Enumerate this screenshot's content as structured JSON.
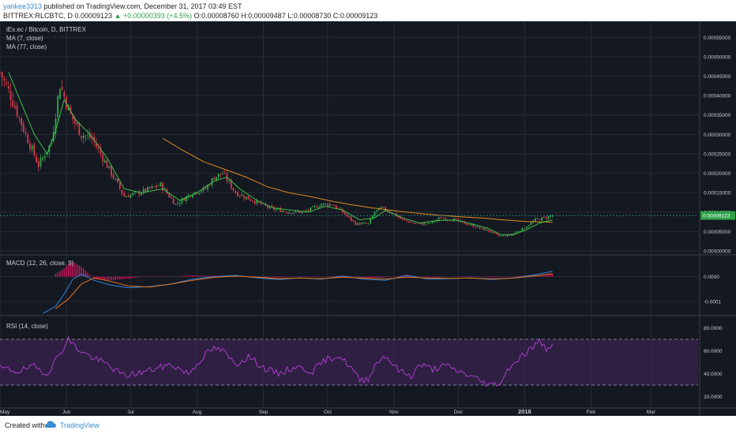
{
  "header": {
    "user": "yankee3313",
    "published": " published on TradingView.com, December 31, 2017 03:49 EST",
    "symbol_line": "BITTREX:RLCBTC, D  0.00009123",
    "change": "▲ +0.00000393 (+4.5%)",
    "ohlc": "O:0.00008760 H:0.00009487 L:0.00008730 C:0.00009123"
  },
  "price_pane": {
    "title": "iEx.ec / Bitcoin, D, BITTREX",
    "ma1": "MA (7, close)",
    "ma2": "MA (77, close)",
    "last_price": "0.00009123"
  },
  "macd_pane": {
    "title": "MACD (12, 26, close, 9)"
  },
  "rsi_pane": {
    "title": "RSI (14, close)"
  },
  "footer": {
    "created_with": "Created with",
    "brand": "TradingView"
  },
  "colors": {
    "background": "#141821",
    "up_candle": "#2ea24a",
    "down_candle": "#d0394a",
    "ma7": "#3fbf47",
    "ma77": "#e08a1e",
    "macd": "#2e86de",
    "signal": "#e8731a",
    "histogram": "#c2185b",
    "rsi": "#b53fd6",
    "rsi_band": "#3b2452",
    "grid": "#262b36",
    "axis_text": "#c8ccd4"
  },
  "chart_data": [
    {
      "type": "candlestick",
      "title": "iEx.ec / Bitcoin, D, BITTREX",
      "x_tick_labels": [
        "May",
        "Jun",
        "Jul",
        "Aug",
        "Sep",
        "Oct",
        "Nov",
        "Dec",
        "2018",
        "Feb",
        "Mar"
      ],
      "y_tick_labels": [
        "0.00000000",
        "0.00005000",
        "0.00010000",
        "0.00015000",
        "0.00020000",
        "0.00025000",
        "0.00030000",
        "0.00035000",
        "0.00040000",
        "0.00045000",
        "0.00050000",
        "0.00055000"
      ],
      "ylim": [
        0,
        0.000575
      ],
      "x_range_days": [
        0,
        326
      ],
      "anchors_close": [
        [
          0,
          0.00046
        ],
        [
          5,
          0.0004
        ],
        [
          12,
          0.0003
        ],
        [
          18,
          0.00022
        ],
        [
          24,
          0.00028
        ],
        [
          28,
          0.00043
        ],
        [
          33,
          0.00035
        ],
        [
          38,
          0.0003
        ],
        [
          43,
          0.00029
        ],
        [
          50,
          0.00022
        ],
        [
          58,
          0.00014
        ],
        [
          65,
          0.00015
        ],
        [
          75,
          0.00017
        ],
        [
          82,
          0.00012
        ],
        [
          90,
          0.00015
        ],
        [
          96,
          0.00016
        ],
        [
          100,
          0.00019
        ],
        [
          104,
          0.0002
        ],
        [
          110,
          0.00015
        ],
        [
          118,
          0.00013
        ],
        [
          126,
          0.00011
        ],
        [
          135,
          0.0001
        ],
        [
          142,
          0.0001
        ],
        [
          150,
          0.00012
        ],
        [
          155,
          0.00012
        ],
        [
          160,
          0.0001
        ],
        [
          166,
          7e-05
        ],
        [
          172,
          7e-05
        ],
        [
          175,
          0.0001
        ],
        [
          178,
          0.00011
        ],
        [
          183,
          9.8e-05
        ],
        [
          188,
          8e-05
        ],
        [
          194,
          7e-05
        ],
        [
          200,
          7e-05
        ],
        [
          206,
          8.5e-05
        ],
        [
          212,
          8e-05
        ],
        [
          218,
          7e-05
        ],
        [
          223,
          6e-05
        ],
        [
          228,
          5.2e-05
        ],
        [
          233,
          3.8e-05
        ],
        [
          238,
          4e-05
        ],
        [
          245,
          6e-05
        ],
        [
          250,
          8e-05
        ],
        [
          254,
          8.5e-05
        ],
        [
          258,
          9.123e-05
        ]
      ],
      "ma7": [
        [
          4,
          0.00046
        ],
        [
          10,
          0.00038
        ],
        [
          16,
          0.0003
        ],
        [
          22,
          0.00025
        ],
        [
          26,
          0.00031
        ],
        [
          30,
          0.00039
        ],
        [
          35,
          0.00034
        ],
        [
          42,
          0.0003
        ],
        [
          50,
          0.00024
        ],
        [
          58,
          0.00016
        ],
        [
          66,
          0.00015
        ],
        [
          76,
          0.00016
        ],
        [
          84,
          0.00013
        ],
        [
          92,
          0.00015
        ],
        [
          100,
          0.00018
        ],
        [
          106,
          0.00019
        ],
        [
          112,
          0.00016
        ],
        [
          120,
          0.00013
        ],
        [
          128,
          0.00011
        ],
        [
          136,
          0.000105
        ],
        [
          144,
          0.0001
        ],
        [
          152,
          0.000115
        ],
        [
          160,
          0.000105
        ],
        [
          168,
          8e-05
        ],
        [
          175,
          8.5e-05
        ],
        [
          180,
          0.000105
        ],
        [
          188,
          8.5e-05
        ],
        [
          196,
          7.2e-05
        ],
        [
          204,
          7.8e-05
        ],
        [
          212,
          8e-05
        ],
        [
          220,
          7e-05
        ],
        [
          228,
          5.8e-05
        ],
        [
          234,
          4.2e-05
        ],
        [
          240,
          4.2e-05
        ],
        [
          246,
          5.5e-05
        ],
        [
          252,
          7.2e-05
        ],
        [
          258,
          8e-05
        ]
      ],
      "ma77": [
        [
          76,
          0.00029
        ],
        [
          85,
          0.00026
        ],
        [
          95,
          0.00023
        ],
        [
          105,
          0.00021
        ],
        [
          115,
          0.00019
        ],
        [
          125,
          0.000165
        ],
        [
          135,
          0.00015
        ],
        [
          145,
          0.00014
        ],
        [
          155,
          0.000128
        ],
        [
          165,
          0.000118
        ],
        [
          175,
          0.00011
        ],
        [
          185,
          0.000103
        ],
        [
          195,
          9.7e-05
        ],
        [
          205,
          9.2e-05
        ],
        [
          215,
          8.8e-05
        ],
        [
          225,
          8.5e-05
        ],
        [
          235,
          8e-05
        ],
        [
          245,
          7.6e-05
        ],
        [
          258,
          7.4e-05
        ]
      ]
    },
    {
      "type": "line",
      "title": "MACD (12, 26, close, 9)",
      "y_tick_labels": [
        "0.0000",
        "-0.0001"
      ],
      "ylim": [
        -0.000155,
        8.5e-05
      ],
      "macd": [
        [
          20,
          -0.00015
        ],
        [
          26,
          -0.00012
        ],
        [
          30,
          -7e-05
        ],
        [
          34,
          -1e-05
        ],
        [
          38,
          1e-05
        ],
        [
          44,
          -1.5e-05
        ],
        [
          52,
          -3.5e-05
        ],
        [
          60,
          -4.5e-05
        ],
        [
          70,
          -4e-05
        ],
        [
          80,
          -3e-05
        ],
        [
          90,
          -1e-05
        ],
        [
          100,
          0.0
        ],
        [
          110,
          5e-06
        ],
        [
          120,
          -5e-06
        ],
        [
          130,
          -1.2e-05
        ],
        [
          140,
          -5e-06
        ],
        [
          150,
          -1e-05
        ],
        [
          160,
          2e-06
        ],
        [
          170,
          -1e-05
        ],
        [
          180,
          -1.5e-05
        ],
        [
          190,
          5e-06
        ],
        [
          200,
          -1e-05
        ],
        [
          210,
          -8e-06
        ],
        [
          220,
          -5e-06
        ],
        [
          230,
          -1.2e-05
        ],
        [
          240,
          -5e-06
        ],
        [
          250,
          8e-06
        ],
        [
          258,
          2.2e-05
        ]
      ],
      "signal": [
        [
          26,
          -0.00013
        ],
        [
          32,
          -9e-05
        ],
        [
          38,
          -3e-05
        ],
        [
          44,
          -5e-06
        ],
        [
          52,
          -2e-05
        ],
        [
          60,
          -3.8e-05
        ],
        [
          70,
          -4.2e-05
        ],
        [
          80,
          -3e-05
        ],
        [
          90,
          -1.5e-05
        ],
        [
          100,
          -3e-06
        ],
        [
          110,
          2e-06
        ],
        [
          120,
          -2e-06
        ],
        [
          130,
          -8e-06
        ],
        [
          140,
          -6e-06
        ],
        [
          150,
          -8e-06
        ],
        [
          160,
          -2e-06
        ],
        [
          170,
          -6e-06
        ],
        [
          180,
          -1e-05
        ],
        [
          190,
          -2e-06
        ],
        [
          200,
          -6e-06
        ],
        [
          210,
          -7e-06
        ],
        [
          220,
          -6e-06
        ],
        [
          230,
          -9e-06
        ],
        [
          240,
          -6e-06
        ],
        [
          250,
          3e-06
        ],
        [
          258,
          1.2e-05
        ]
      ]
    },
    {
      "type": "line",
      "title": "RSI (14, close)",
      "y_tick_labels": [
        "20.0000",
        "40.0000",
        "60.0000",
        "80.0000"
      ],
      "ylim": [
        10,
        90
      ],
      "upper_band": 70,
      "lower_band": 30,
      "rsi": [
        [
          0,
          45
        ],
        [
          8,
          42
        ],
        [
          16,
          46
        ],
        [
          22,
          40
        ],
        [
          28,
          58
        ],
        [
          32,
          70
        ],
        [
          36,
          62
        ],
        [
          42,
          55
        ],
        [
          50,
          48
        ],
        [
          58,
          38
        ],
        [
          66,
          41
        ],
        [
          72,
          44
        ],
        [
          80,
          48
        ],
        [
          88,
          40
        ],
        [
          96,
          57
        ],
        [
          100,
          62
        ],
        [
          104,
          60
        ],
        [
          110,
          48
        ],
        [
          116,
          55
        ],
        [
          124,
          44
        ],
        [
          130,
          40
        ],
        [
          138,
          46
        ],
        [
          146,
          42
        ],
        [
          152,
          52
        ],
        [
          158,
          56
        ],
        [
          164,
          45
        ],
        [
          168,
          34
        ],
        [
          172,
          36
        ],
        [
          176,
          50
        ],
        [
          180,
          56
        ],
        [
          186,
          43
        ],
        [
          192,
          38
        ],
        [
          196,
          48
        ],
        [
          202,
          44
        ],
        [
          208,
          47
        ],
        [
          214,
          42
        ],
        [
          220,
          38
        ],
        [
          226,
          32
        ],
        [
          230,
          30
        ],
        [
          234,
          33
        ],
        [
          238,
          46
        ],
        [
          244,
          56
        ],
        [
          248,
          62
        ],
        [
          252,
          68
        ],
        [
          255,
          62
        ],
        [
          258,
          66
        ]
      ]
    }
  ]
}
